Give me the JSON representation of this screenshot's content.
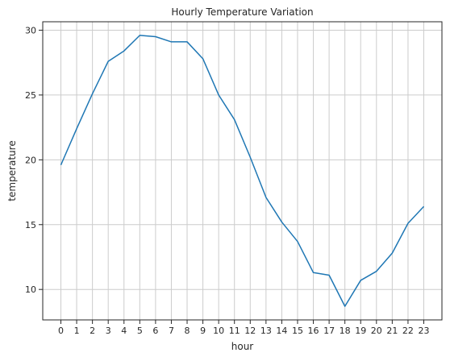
{
  "chart_data": {
    "type": "line",
    "title": "Hourly Temperature Variation",
    "xlabel": "hour",
    "ylabel": "temperature",
    "x": [
      0,
      1,
      2,
      3,
      4,
      5,
      6,
      7,
      8,
      9,
      10,
      11,
      12,
      13,
      14,
      15,
      16,
      17,
      18,
      19,
      20,
      21,
      22,
      23
    ],
    "series": [
      {
        "values": [
          19.6,
          22.4,
          25.1,
          27.6,
          28.4,
          29.6,
          29.5,
          29.1,
          29.1,
          27.8,
          25.0,
          23.1,
          20.2,
          17.1,
          15.2,
          13.7,
          11.3,
          11.1,
          8.7,
          10.7,
          11.4,
          12.8,
          15.1,
          16.4
        ]
      }
    ],
    "xlim": [
      -1.15,
      24.15
    ],
    "ylim": [
      7.65,
      30.65
    ],
    "xticks": [
      0,
      1,
      2,
      3,
      4,
      5,
      6,
      7,
      8,
      9,
      10,
      11,
      12,
      13,
      14,
      15,
      16,
      17,
      18,
      19,
      20,
      21,
      22,
      23
    ],
    "yticks": [
      10,
      15,
      20,
      25,
      30
    ],
    "grid": true,
    "colors": {
      "line": "#1f77b4",
      "grid": "#cccccc",
      "axis": "#262626"
    }
  }
}
